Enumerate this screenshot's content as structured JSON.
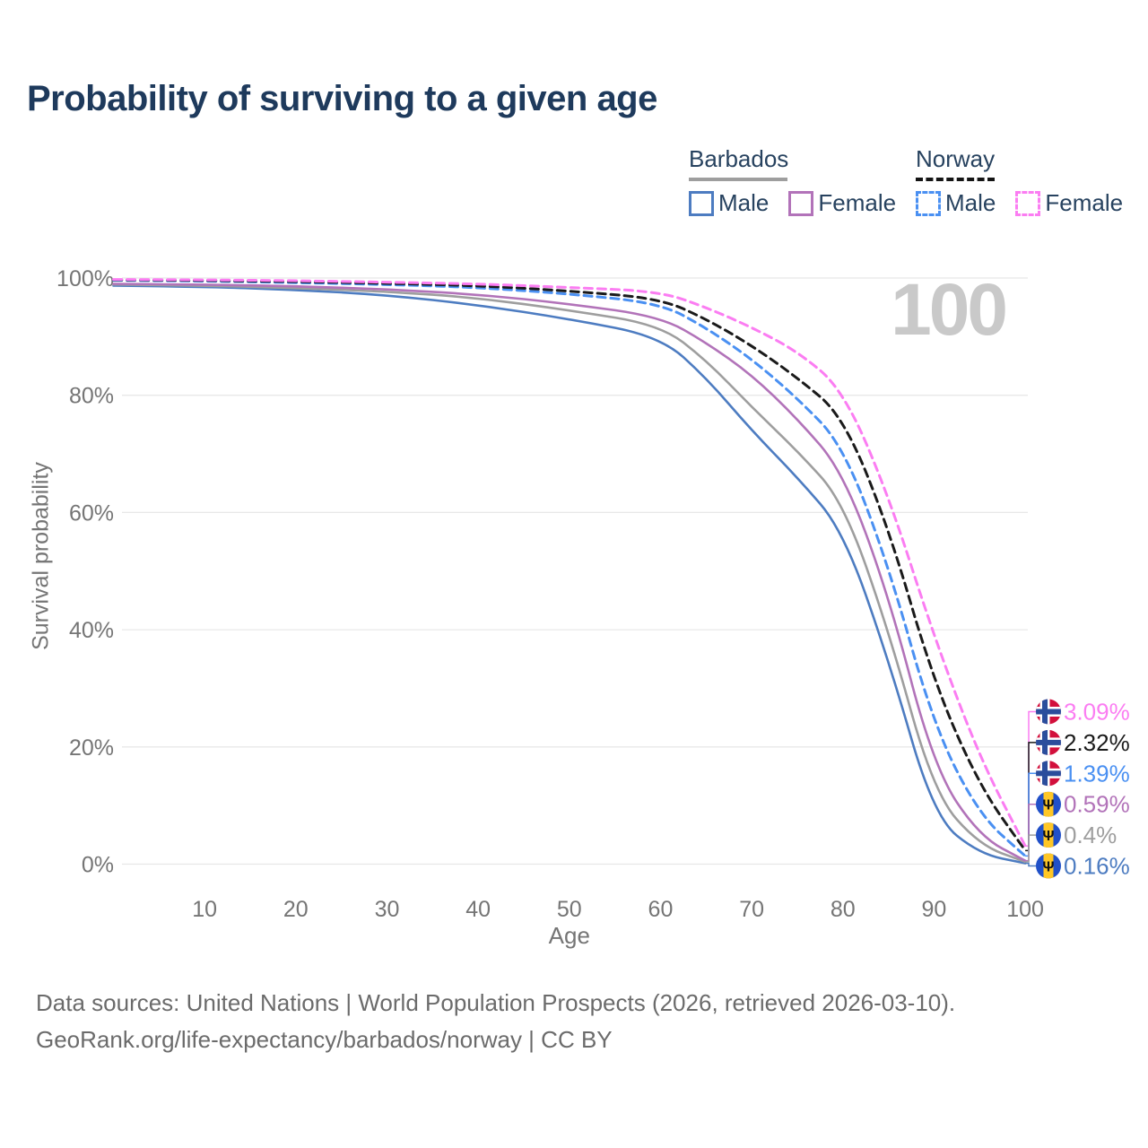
{
  "title": "Probability of surviving to a given age",
  "watermark_age": "100",
  "legend": {
    "groups": [
      {
        "name": "Barbados",
        "line_style": "solid",
        "underline_color": "#9e9e9e",
        "items": [
          {
            "label": "Male",
            "color": "#4d7cc1"
          },
          {
            "label": "Female",
            "color": "#b273b9"
          }
        ]
      },
      {
        "name": "Norway",
        "line_style": "dashed",
        "underline_color": "#141414",
        "items": [
          {
            "label": "Male",
            "color": "#4a90f2"
          },
          {
            "label": "Female",
            "color": "#fb7df2"
          }
        ]
      }
    ]
  },
  "colors": {
    "title_text": "#1e3a5c",
    "axis_text": "#757575",
    "gridline": "#e8e8e8",
    "watermark": "#c9c9c9",
    "norway_flag_red": "#d2103c",
    "norway_flag_blue": "#2b4d9c",
    "barbados_flag_blue": "#2050c8",
    "barbados_flag_yellow": "#ffc726"
  },
  "chart_data": {
    "type": "line",
    "title": "Probability of surviving to a given age",
    "xlabel": "Age",
    "ylabel": "Survival probability",
    "xlim": [
      0,
      100
    ],
    "ylim": [
      0,
      100
    ],
    "grid": "horizontal",
    "x_ticks": [
      10,
      20,
      30,
      40,
      50,
      60,
      70,
      80,
      90,
      100
    ],
    "y_ticks": [
      "0%",
      "20%",
      "40%",
      "60%",
      "80%",
      "100%"
    ],
    "legend_position": "top-right",
    "x": [
      0,
      10,
      20,
      30,
      40,
      50,
      60,
      65,
      70,
      75,
      80,
      85,
      90,
      95,
      100
    ],
    "series": [
      {
        "id": "barbados-male",
        "name": "Barbados Male",
        "country": "Barbados",
        "sex": "Male",
        "color": "#4d7cc1",
        "dash": false,
        "flag": "barbados",
        "values": [
          98.7,
          98.5,
          98.0,
          97.1,
          95.4,
          93.0,
          90.0,
          83.0,
          74.0,
          66.0,
          57.0,
          35.0,
          8.0,
          1.7,
          0.16
        ],
        "end_label": "0.16%"
      },
      {
        "id": "barbados-both",
        "name": "Barbados",
        "country": "Barbados",
        "sex": "Both",
        "color": "#9e9e9e",
        "dash": false,
        "flag": "barbados",
        "values": [
          98.9,
          98.7,
          98.3,
          97.7,
          96.6,
          94.5,
          92.0,
          86.0,
          78.0,
          70.5,
          62.0,
          40.0,
          12.0,
          3.2,
          0.4
        ],
        "end_label": "0.4%"
      },
      {
        "id": "barbados-female",
        "name": "Barbados Female",
        "country": "Barbados",
        "sex": "Female",
        "color": "#b273b9",
        "dash": false,
        "flag": "barbados",
        "values": [
          99.0,
          98.9,
          98.6,
          98.1,
          97.2,
          95.6,
          93.4,
          89.0,
          83.5,
          76.0,
          67.0,
          46.0,
          16.4,
          4.7,
          0.59
        ],
        "end_label": "0.59%"
      },
      {
        "id": "norway-male",
        "name": "Norway Male",
        "country": "Norway",
        "sex": "Male",
        "color": "#4a90f2",
        "dash": true,
        "flag": "norway",
        "values": [
          99.6,
          99.5,
          99.2,
          98.9,
          98.4,
          97.3,
          95.7,
          91.5,
          86.2,
          79.5,
          71.5,
          51.0,
          23.5,
          8.3,
          1.39
        ],
        "end_label": "1.39%"
      },
      {
        "id": "norway-both",
        "name": "Norway",
        "country": "Norway",
        "sex": "Both",
        "color": "#1a1a1a",
        "dash": true,
        "flag": "norway",
        "values": [
          99.7,
          99.6,
          99.4,
          99.1,
          98.7,
          97.8,
          96.5,
          93.0,
          88.5,
          83.0,
          76.5,
          57.5,
          31.0,
          13.3,
          2.32
        ],
        "end_label": "2.32%"
      },
      {
        "id": "norway-female",
        "name": "Norway Female",
        "country": "Norway",
        "sex": "Female",
        "color": "#fb7df2",
        "dash": true,
        "flag": "norway",
        "values": [
          99.75,
          99.7,
          99.55,
          99.3,
          99.0,
          98.4,
          97.7,
          95.0,
          91.6,
          87.5,
          81.0,
          63.0,
          38.8,
          18.2,
          3.09
        ],
        "end_label": "3.09%"
      }
    ]
  },
  "footer": {
    "line1": "Data sources: United Nations | World Population Prospects (2026, retrieved 2026-03-10).",
    "line2": "GeoRank.org/life-expectancy/barbados/norway | CC BY"
  }
}
